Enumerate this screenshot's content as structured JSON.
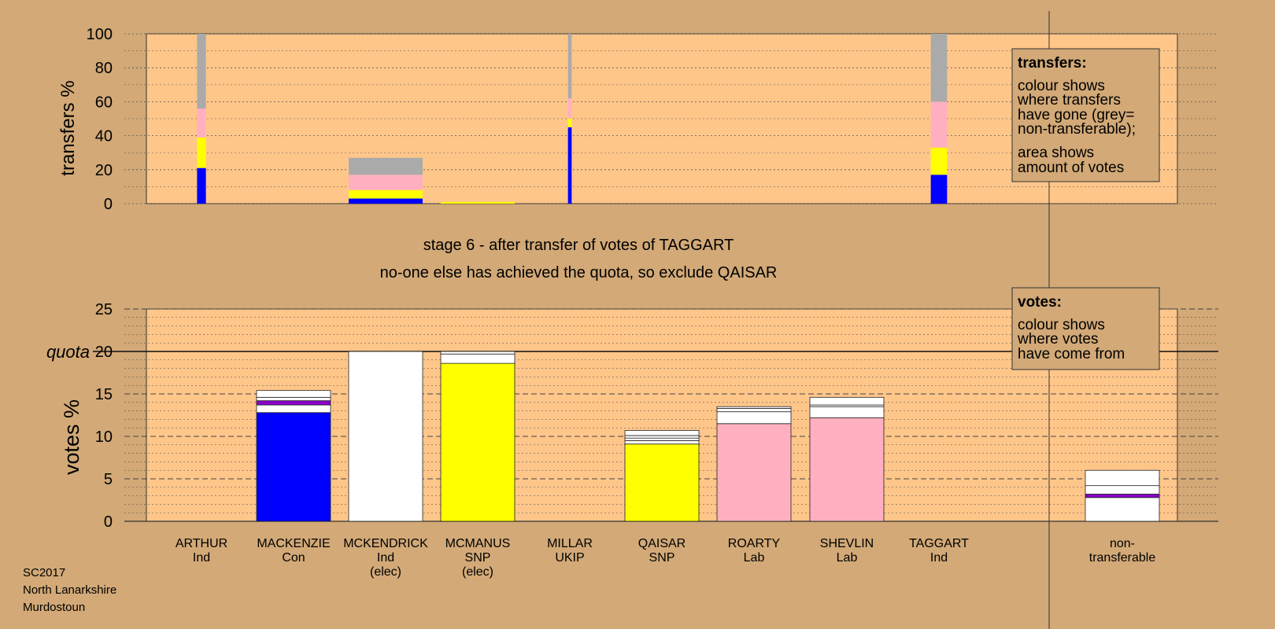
{
  "colors": {
    "background": "#d2a977",
    "plot_bg": "#ffc68a",
    "blue": "#0000ff",
    "yellow": "#ffff00",
    "pink": "#ffb0c0",
    "grey": "#aaaaaa",
    "white": "#ffffff",
    "purple": "#8a00cc"
  },
  "stage_text": {
    "line1": "stage 6 - after transfer of votes of TAGGART",
    "line2": "no-one else has achieved the quota, so exclude QAISAR"
  },
  "legend_transfers": {
    "title": "transfers:",
    "lines": [
      "colour shows",
      "where transfers",
      "have gone (grey=",
      "non-transferable);",
      "area shows",
      "amount of votes"
    ]
  },
  "legend_votes": {
    "title": "votes:",
    "lines": [
      "colour shows",
      "where votes",
      "have come from"
    ]
  },
  "footer": {
    "line1": "SC2017",
    "line2": "North Lanarkshire",
    "line3": "Murdostoun"
  },
  "chart_data": [
    {
      "type": "bar",
      "name": "transfers",
      "ylabel": "transfers %",
      "ylim": [
        0,
        100
      ],
      "yticks": [
        0,
        20,
        40,
        60,
        80,
        100
      ],
      "grid": true,
      "columns": [
        {
          "width_rel": 0.12,
          "segments": [
            {
              "color": "blue",
              "value": 21
            },
            {
              "color": "yellow",
              "value": 18
            },
            {
              "color": "pink",
              "value": 17
            },
            {
              "color": "grey",
              "value": 44
            }
          ]
        },
        {
          "width_rel": 1.0,
          "segments": [
            {
              "color": "blue",
              "value": 3
            },
            {
              "color": "yellow",
              "value": 5
            },
            {
              "color": "pink",
              "value": 9
            },
            {
              "color": "grey",
              "value": 10
            }
          ]
        },
        {
          "width_rel": 1.0,
          "segments": [
            {
              "color": "yellow",
              "value": 1
            }
          ]
        },
        {
          "width_rel": 0.05,
          "segments": [
            {
              "color": "blue",
              "value": 45
            },
            {
              "color": "yellow",
              "value": 5
            },
            {
              "color": "pink",
              "value": 12
            },
            {
              "color": "grey",
              "value": 38
            }
          ]
        },
        {
          "width_rel": 0.22,
          "segments": [
            {
              "color": "blue",
              "value": 17
            },
            {
              "color": "yellow",
              "value": 16
            },
            {
              "color": "pink",
              "value": 27
            },
            {
              "color": "grey",
              "value": 40
            }
          ]
        }
      ]
    },
    {
      "type": "bar",
      "name": "votes",
      "ylabel": "votes %",
      "ylim": [
        0,
        25
      ],
      "yticks": [
        0,
        5,
        10,
        15,
        20,
        25
      ],
      "quota": 20,
      "quota_label": "quota",
      "grid": true,
      "categories": [
        {
          "name": "ARTHUR",
          "party": "Ind",
          "note": "",
          "segments": []
        },
        {
          "name": "MACKENZIE",
          "party": "Con",
          "note": "",
          "segments": [
            {
              "color": "blue",
              "value": 12.8
            },
            {
              "color": "white",
              "value": 0.9
            },
            {
              "color": "purple",
              "value": 0.5
            },
            {
              "color": "white",
              "value": 0.4
            },
            {
              "color": "white",
              "value": 0.8
            }
          ]
        },
        {
          "name": "MCKENDRICK",
          "party": "Ind",
          "note": "(elec)",
          "segments": [
            {
              "color": "white",
              "value": 20
            }
          ]
        },
        {
          "name": "MCMANUS",
          "party": "SNP",
          "note": "(elec)",
          "segments": [
            {
              "color": "yellow",
              "value": 18.6
            },
            {
              "color": "white",
              "value": 1.1
            },
            {
              "color": "white",
              "value": 0.3
            }
          ]
        },
        {
          "name": "MILLAR",
          "party": "UKIP",
          "note": "",
          "segments": []
        },
        {
          "name": "QAISAR",
          "party": "SNP",
          "note": "",
          "segments": [
            {
              "color": "yellow",
              "value": 9.1
            },
            {
              "color": "white",
              "value": 0.4
            },
            {
              "color": "white",
              "value": 0.3
            },
            {
              "color": "white",
              "value": 0.3
            },
            {
              "color": "white",
              "value": 0.6
            }
          ]
        },
        {
          "name": "ROARTY",
          "party": "Lab",
          "note": "",
          "segments": [
            {
              "color": "pink",
              "value": 11.5
            },
            {
              "color": "white",
              "value": 1.4
            },
            {
              "color": "white",
              "value": 0.4
            },
            {
              "color": "white",
              "value": 0.2
            }
          ]
        },
        {
          "name": "SHEVLIN",
          "party": "Lab",
          "note": "",
          "segments": [
            {
              "color": "pink",
              "value": 12.2
            },
            {
              "color": "white",
              "value": 1.3
            },
            {
              "color": "white",
              "value": 0.2
            },
            {
              "color": "white",
              "value": 0.9
            }
          ]
        },
        {
          "name": "TAGGART",
          "party": "Ind",
          "note": "",
          "segments": []
        },
        {
          "name": "non-",
          "party": "transferable",
          "note": "",
          "segments": [
            {
              "color": "white",
              "value": 2.8
            },
            {
              "color": "purple",
              "value": 0.4
            },
            {
              "color": "white",
              "value": 1.0
            },
            {
              "color": "white",
              "value": 1.8
            }
          ]
        }
      ]
    }
  ]
}
